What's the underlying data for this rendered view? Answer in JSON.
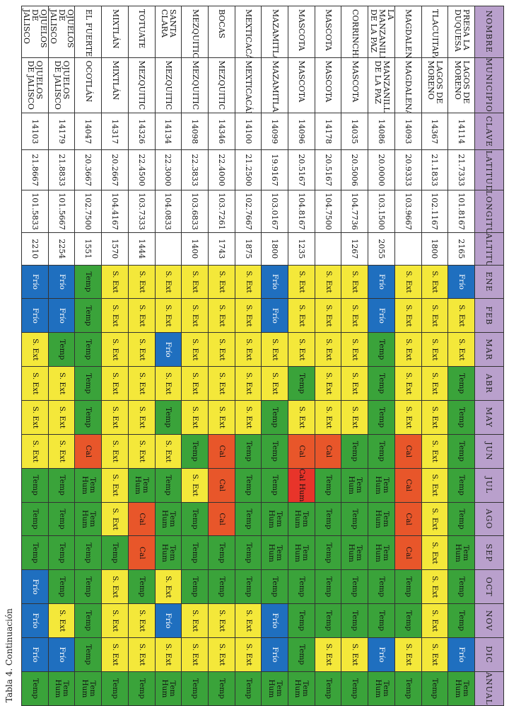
{
  "caption": "Tabla 4. Continuación",
  "colors": {
    "Frío": "#1f6fbf",
    "S. Ext": "#f4e83a",
    "Temp": "#3aa33a",
    "Tem Hum": "#3aa33a",
    "Cal": "#e8562a",
    "Cal Hum": "#e8342a",
    "header": "#b9a0cc"
  },
  "headers": [
    "NOMBRE",
    "MUNICIPIO",
    "CLAVE",
    "LATITUD",
    "LONGITUD",
    "ALTITUD",
    "ENE",
    "FEB",
    "MAR",
    "ABR",
    "MAY",
    "JUN",
    "JUL",
    "AGO",
    "SEP",
    "OCT",
    "NOV",
    "DIC",
    "ANUAL"
  ],
  "rows": [
    {
      "nombre": "PRESA LA DUQUESA",
      "municipio": "LAGOS DE MORENO",
      "clave": "14114",
      "lat": "21.7333",
      "lon": "101.8167",
      "alt": "2165",
      "months": [
        "Frío",
        "S. Ext",
        "S. Ext",
        "Temp",
        "Temp",
        "Temp",
        "Temp",
        "Temp",
        "Tem Hum",
        "Temp",
        "Temp",
        "Frío",
        "Tem Hum"
      ]
    },
    {
      "nombre": "TLACUITAPAN",
      "municipio": "LAGOS DE MORENO",
      "clave": "14367",
      "lat": "21.1833",
      "lon": "102.1167",
      "alt": "1800",
      "months": [
        "S. Ext",
        "S. Ext",
        "S. Ext",
        "S. Ext",
        "S. Ext",
        "S. Ext",
        "S. Ext",
        "S. Ext",
        "S. Ext",
        "S. Ext",
        "S. Ext",
        "S. Ext",
        "Temp"
      ]
    },
    {
      "nombre": "MAGDALENA",
      "municipio": "MAGDALENA",
      "clave": "14093",
      "lat": "20.9333",
      "lon": "103.9667",
      "alt": "",
      "months": [
        "S. Ext",
        "S. Ext",
        "S. Ext",
        "S. Ext",
        "S. Ext",
        "Cal",
        "Cal",
        "Cal",
        "Cal",
        "Temp",
        "Temp",
        "S. Ext",
        "Temp"
      ]
    },
    {
      "nombre": "LA MANZANILLA DE LA PAZ",
      "municipio": "MANZANILLA DE LA PAZ",
      "clave": "14086",
      "lat": "20.0000",
      "lon": "103.1500",
      "alt": "2055",
      "months": [
        "Frío",
        "Frío",
        "Temp",
        "Temp",
        "Temp",
        "Temp",
        "Tem Hum",
        "Tem Hum",
        "Tem Hum",
        "Temp",
        "Temp",
        "Frío",
        "Tem Hum"
      ]
    },
    {
      "nombre": "CORRINCHIS",
      "municipio": "MASCOTA",
      "clave": "14035",
      "lat": "20.5006",
      "lon": "104.7736",
      "alt": "1267",
      "months": [
        "S. Ext",
        "S. Ext",
        "S. Ext",
        "S. Ext",
        "S. Ext",
        "Temp",
        "Tem Hum",
        "Temp",
        "Tem Hum",
        "Temp",
        "Temp",
        "S. Ext",
        "Temp"
      ]
    },
    {
      "nombre": "MASCOTA",
      "municipio": "MASCOTA",
      "clave": "14178",
      "lat": "20.5167",
      "lon": "104.7500",
      "alt": "",
      "months": [
        "S. Ext",
        "S. Ext",
        "S. Ext",
        "S. Ext",
        "S. Ext",
        "Cal",
        "Temp",
        "Temp",
        "Temp",
        "Temp",
        "Temp",
        "S. Ext",
        "Temp"
      ]
    },
    {
      "nombre": "MASCOTA",
      "municipio": "MASCOTA",
      "clave": "14096",
      "lat": "20.5167",
      "lon": "104.8167",
      "alt": "1235",
      "months": [
        "S. Ext",
        "S. Ext",
        "S. Ext",
        "Temp",
        "S. Ext",
        "Cal",
        "Cal Hum",
        "Tem Hum",
        "Tem Hum",
        "Temp",
        "Temp",
        "Temp",
        "Tem Hum"
      ]
    },
    {
      "nombre": "MAZAMITLA",
      "municipio": "MAZAMITLA",
      "clave": "14099",
      "lat": "19.9167",
      "lon": "103.0167",
      "alt": "1800",
      "months": [
        "Frío",
        "Frío",
        "S. Ext",
        "S. Ext",
        "Temp",
        "Temp",
        "Temp",
        "Tem Hum",
        "Tem Hum",
        "Temp",
        "Frío",
        "Frío",
        "Tem Hum"
      ]
    },
    {
      "nombre": "MEXTICACÁN",
      "municipio": "MEXTICACÁN",
      "clave": "14100",
      "lat": "21.2500",
      "lon": "102.7667",
      "alt": "1875",
      "months": [
        "S. Ext",
        "S. Ext",
        "S. Ext",
        "S. Ext",
        "S. Ext",
        "Temp",
        "Temp",
        "Temp",
        "Temp",
        "Temp",
        "S. Ext",
        "S. Ext",
        "Temp"
      ]
    },
    {
      "nombre": "BOCAS",
      "municipio": "MEZQUITIC",
      "clave": "14346",
      "lat": "22.4000",
      "lon": "103.7261",
      "alt": "1743",
      "months": [
        "S. Ext",
        "S. Ext",
        "S. Ext",
        "S. Ext",
        "S. Ext",
        "Cal",
        "Cal",
        "Cal",
        "Temp",
        "Temp",
        "S. Ext",
        "S. Ext",
        "Temp"
      ]
    },
    {
      "nombre": "MEZQUITIC",
      "municipio": "MEZQUITIC",
      "clave": "14098",
      "lat": "22.3833",
      "lon": "103.6833",
      "alt": "1400",
      "months": [
        "S. Ext",
        "S. Ext",
        "S. Ext",
        "S. Ext",
        "S. Ext",
        "Temp",
        "S. Ext",
        "Temp",
        "Temp",
        "Temp",
        "S. Ext",
        "S. Ext",
        "Temp"
      ]
    },
    {
      "nombre": "SANTA CLARA",
      "municipio": "MEZQUITIC",
      "clave": "14134",
      "lat": "22.3000",
      "lon": "104.0833",
      "alt": "",
      "months": [
        "S. Ext",
        "S. Ext",
        "Frío",
        "S. Ext",
        "Temp",
        "S. Ext",
        "Temp",
        "Tem Hum",
        "Tem Hum",
        "S. Ext",
        "Frío",
        "S. Ext",
        "Tem Hum"
      ]
    },
    {
      "nombre": "TOTUATE",
      "municipio": "MEZQUITIC",
      "clave": "14326",
      "lat": "22.4500",
      "lon": "103.7333",
      "alt": "1444",
      "months": [
        "S. Ext",
        "S. Ext",
        "S. Ext",
        "S. Ext",
        "S. Ext",
        "S. Ext",
        "Tem Hum",
        "Cal",
        "Cal",
        "Temp",
        "S. Ext",
        "S. Ext",
        "Temp"
      ]
    },
    {
      "nombre": "MIXTLÁN",
      "municipio": "MIXTLÁN",
      "clave": "14317",
      "lat": "20.2667",
      "lon": "104.4167",
      "alt": "1570",
      "months": [
        "S. Ext",
        "S. Ext",
        "S. Ext",
        "S. Ext",
        "S. Ext",
        "S. Ext",
        "S. Ext",
        "S. Ext",
        "Temp",
        "S. Ext",
        "S. Ext",
        "S. Ext",
        "Temp"
      ]
    },
    {
      "nombre": "EL FUERTE",
      "municipio": "OCOTLÁN",
      "clave": "14047",
      "lat": "20.3667",
      "lon": "102.7500",
      "alt": "1551",
      "months": [
        "Temp",
        "Temp",
        "Temp",
        "Temp",
        "Temp",
        "Cal",
        "Tem Hum",
        "Tem Hum",
        "Temp",
        "Temp",
        "Temp",
        "Temp",
        "Tem Hum"
      ]
    },
    {
      "nombre": "OJUELOS DE JALISCO",
      "municipio": "OJUELOS DE JALISCO",
      "clave": "14179",
      "lat": "21.8833",
      "lon": "101.5667",
      "alt": "2254",
      "months": [
        "Frío",
        "Frío",
        "Temp",
        "S. Ext",
        "S. Ext",
        "S. Ext",
        "Temp",
        "Temp",
        "Temp",
        "Temp",
        "S. Ext",
        "Frío",
        "Tem Hum"
      ]
    },
    {
      "nombre": "OJUELOS DE JALISCO",
      "municipio": "OJUELOS DE JALISCO",
      "clave": "14103",
      "lat": "21.8667",
      "lon": "101.5833",
      "alt": "2210",
      "months": [
        "Frío",
        "Frío",
        "S. Ext",
        "S. Ext",
        "S. Ext",
        "S. Ext",
        "Temp",
        "Temp",
        "Temp",
        "Frío",
        "Frío",
        "Frío",
        "Temp"
      ]
    }
  ]
}
